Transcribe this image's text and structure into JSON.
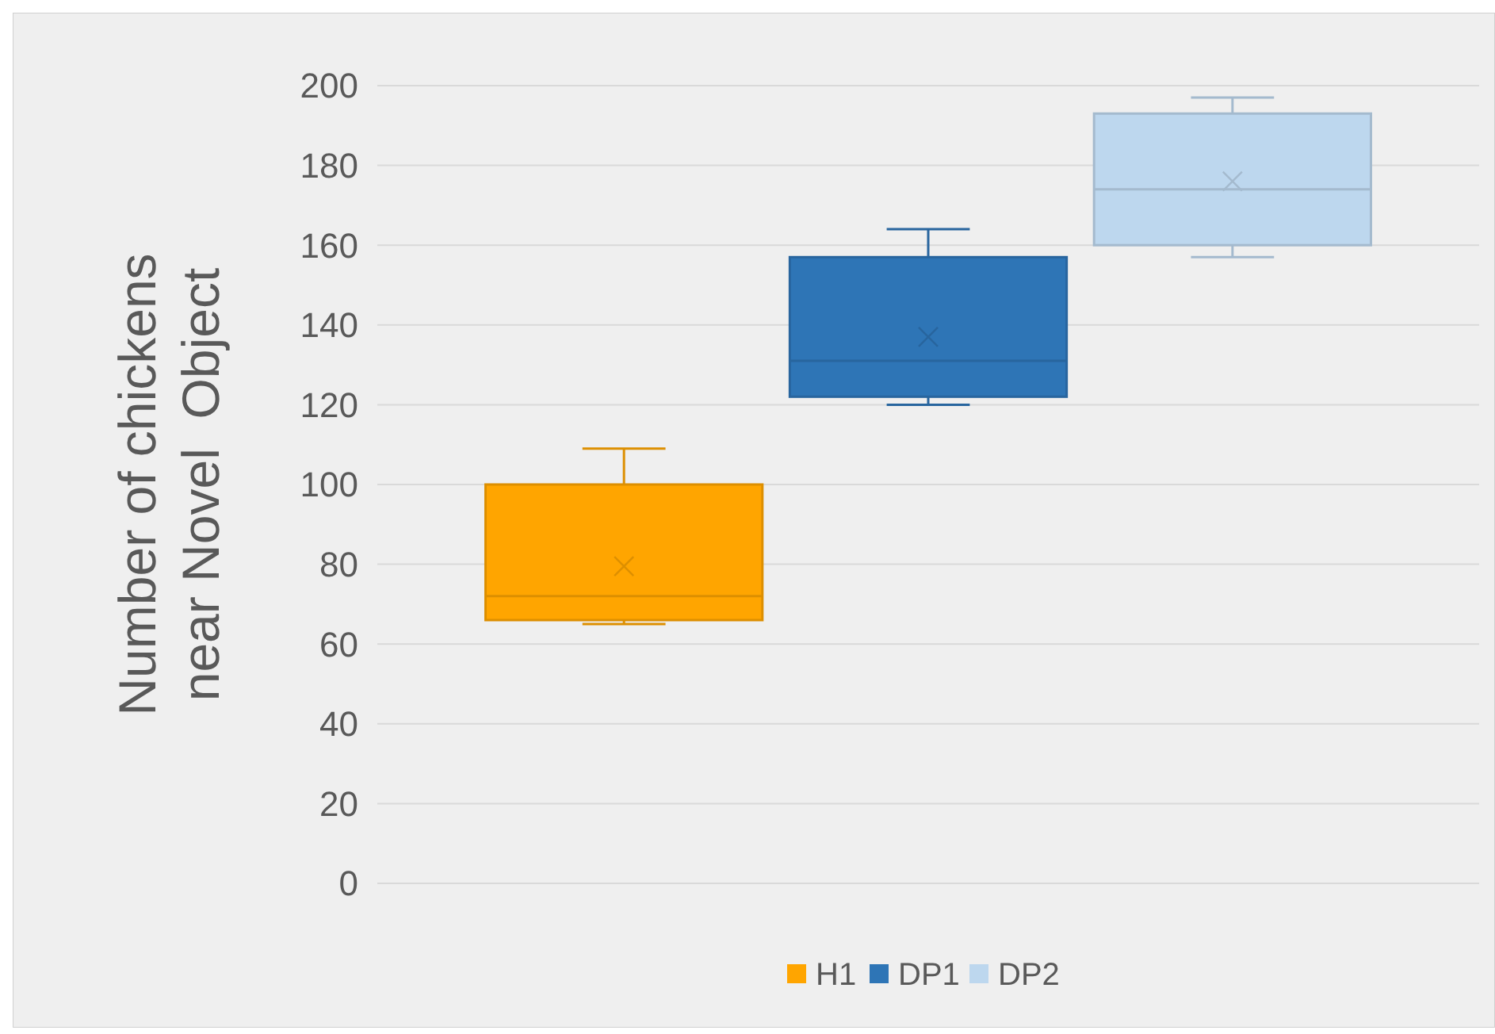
{
  "chart_data": {
    "type": "box",
    "ylabel": "Number of chickens\nnear Novel  Object",
    "categories": [
      null
    ],
    "ylim": [
      0,
      200
    ],
    "yticks": [
      0,
      20,
      40,
      60,
      80,
      100,
      120,
      140,
      160,
      180,
      200
    ],
    "grid": "y",
    "legend": "bottom",
    "series": [
      {
        "name": "H1",
        "color": "#ffa500",
        "boxes": [
          {
            "low": 65,
            "q1": 66,
            "median": 72,
            "q3": 100,
            "high": 109,
            "mean": 79.5
          }
        ]
      },
      {
        "name": "DP1",
        "color": "#2e75b6",
        "boxes": [
          {
            "low": 120,
            "q1": 122,
            "median": 131,
            "q3": 157,
            "high": 164,
            "mean": 137
          }
        ]
      },
      {
        "name": "DP2",
        "color": "#bdd7ee",
        "boxes": [
          {
            "low": 157,
            "q1": 160,
            "median": 174,
            "q3": 193,
            "high": 197,
            "mean": 176
          }
        ]
      }
    ]
  }
}
